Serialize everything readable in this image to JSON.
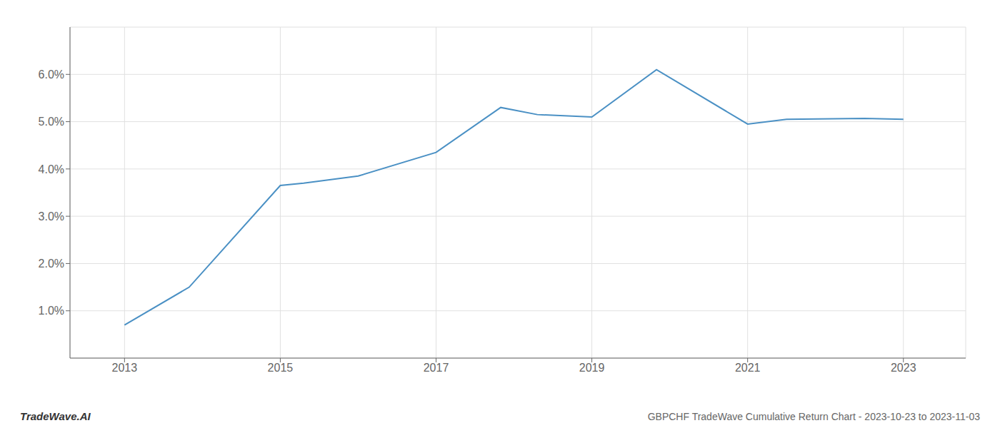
{
  "chart_data": {
    "type": "line",
    "title": "GBPCHF TradeWave Cumulative Return Chart - 2023-10-23 to 2023-11-03",
    "annotations": [
      "TradeWave.AI"
    ],
    "x": [
      2013.0,
      2013.83,
      2015.0,
      2015.3,
      2016.0,
      2017.0,
      2017.83,
      2018.3,
      2019.0,
      2019.83,
      2021.0,
      2021.5,
      2022.5,
      2023.0
    ],
    "values": [
      0.007,
      0.015,
      0.0365,
      0.037,
      0.0385,
      0.0435,
      0.053,
      0.0515,
      0.051,
      0.061,
      0.0495,
      0.0505,
      0.0507,
      0.0505
    ],
    "color": "#4a90c4",
    "xlim": [
      2012.3,
      2023.8
    ],
    "ylim": [
      0.0,
      0.07
    ],
    "xticks": [
      2013,
      2015,
      2017,
      2019,
      2021,
      2023
    ],
    "yticks": [
      {
        "value": 0.01,
        "label": "1.0%"
      },
      {
        "value": 0.02,
        "label": "2.0%"
      },
      {
        "value": 0.03,
        "label": "3.0%"
      },
      {
        "value": 0.04,
        "label": "4.0%"
      },
      {
        "value": 0.05,
        "label": "5.0%"
      },
      {
        "value": 0.06,
        "label": "6.0%"
      }
    ],
    "grid": true
  }
}
